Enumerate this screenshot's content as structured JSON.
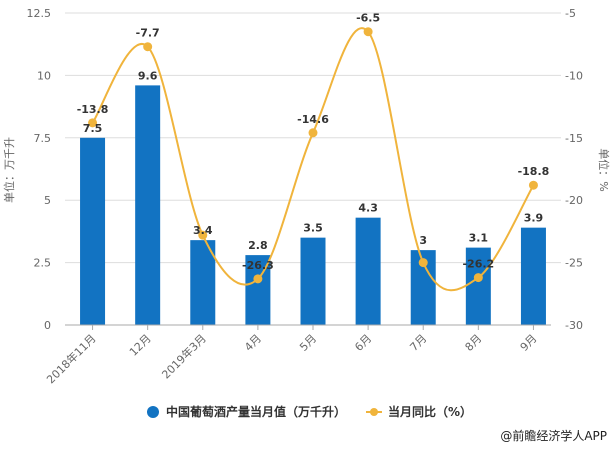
{
  "chart_data": {
    "type": "bar+line",
    "categories": [
      "2018年11月",
      "12月",
      "2019年3月",
      "4月",
      "5月",
      "6月",
      "7月",
      "8月",
      "9月"
    ],
    "series": [
      {
        "name": "中国葡萄酒产量当月值（万千升）",
        "type": "bar",
        "axis": "left",
        "color": "#1273c2",
        "values": [
          7.5,
          9.6,
          3.4,
          2.8,
          3.5,
          4.3,
          3,
          3.1,
          3.9
        ],
        "labels": [
          "7.5",
          "9.6",
          "3.4",
          "2.8",
          "3.5",
          "4.3",
          "3",
          "3.1",
          "3.9"
        ]
      },
      {
        "name": "当月同比（%）",
        "type": "line",
        "axis": "right",
        "color": "#f0b43c",
        "values": [
          -13.8,
          -7.7,
          -22.8,
          -26.3,
          -14.6,
          -6.5,
          -25.0,
          -26.2,
          -18.8
        ],
        "labels": [
          "-13.8",
          "-7.7",
          null,
          "-26.3",
          "-14.6",
          "-6.5",
          null,
          "-26.2",
          "-18.8"
        ]
      }
    ],
    "left_axis": {
      "label": "单位：万千升",
      "range": [
        0,
        12.5
      ],
      "ticks": [
        "0",
        "2.5",
        "5",
        "7.5",
        "10",
        "12.5"
      ]
    },
    "right_axis": {
      "label": "单位：%",
      "range": [
        -30,
        -5
      ],
      "ticks": [
        "-30",
        "-25",
        "-20",
        "-15",
        "-10",
        "-5"
      ]
    },
    "grid": true,
    "legend_placement": "bottom"
  },
  "source": "@前瞻经济学人APP"
}
